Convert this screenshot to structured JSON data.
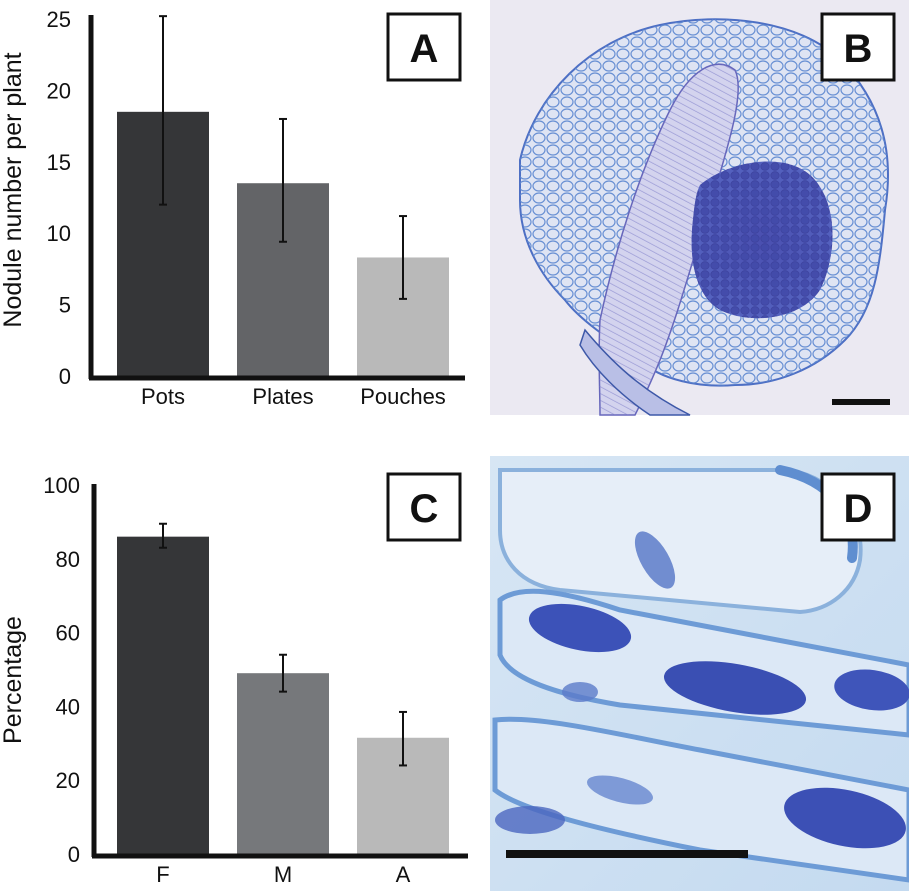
{
  "panels": {
    "a": "A",
    "b": "B",
    "c": "C",
    "d": "D"
  },
  "colors": {
    "dark": "#353638",
    "mid": "#636467",
    "mid_c": "#76787b",
    "light": "#b9b9b9",
    "axis": "#111111",
    "micro_bg": "#e9e8f3",
    "micro_stain": "#3b50b8",
    "micro_cell": "#5a82cc"
  },
  "chart_data": [
    {
      "type": "bar",
      "panel": "A",
      "title": "",
      "ylabel": "Nodule number per plant",
      "xlabel": "",
      "categories": [
        "Pots",
        "Plates",
        "Pouches"
      ],
      "values": [
        18.5,
        13.5,
        8.3
      ],
      "error_low": [
        12.0,
        9.4,
        5.4
      ],
      "error_high": [
        25.2,
        18.0,
        11.2
      ],
      "ylim": [
        0,
        25
      ],
      "yticks": [
        "0",
        "5",
        "10",
        "15",
        "20",
        "25"
      ],
      "bar_colors": [
        "#353638",
        "#636467",
        "#b9b9b9"
      ],
      "grid": false,
      "legend": "none"
    },
    {
      "type": "bar",
      "panel": "C",
      "title": "",
      "ylabel": "Percentage",
      "xlabel": "",
      "categories": [
        "F",
        "M",
        "A"
      ],
      "values": [
        86,
        49,
        31.5
      ],
      "error_low": [
        83,
        44,
        24
      ],
      "error_high": [
        89.5,
        54,
        38.5
      ],
      "ylim": [
        0,
        100
      ],
      "yticks": [
        "0",
        "20",
        "40",
        "60",
        "80",
        "100"
      ],
      "bar_colors": [
        "#353638",
        "#76787b",
        "#b9b9b9"
      ],
      "grid": false,
      "legend": "none"
    }
  ]
}
